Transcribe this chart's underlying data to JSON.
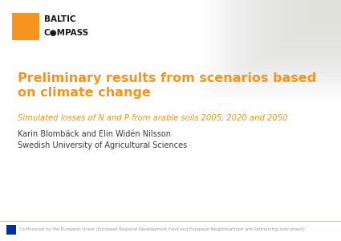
{
  "bg_color": "#ffffff",
  "orange_color": "#f7941d",
  "dark_text": "#3a3a3a",
  "logo_text_color": "#1a1a1a",
  "title_line1": "Preliminary results from scenarios based",
  "title_line2": "on climate change",
  "subtitle": "Simulated losses of N and P from arable soils 2005, 2020 and 2050",
  "author_line1": "Karin Blombäck and Elin Widén Nilsson",
  "author_line2": "Swedish University of Agricultural Sciences",
  "logo_text1": "BALTIC",
  "logo_text2": "C●MPASS",
  "footer_text": "Co-financed by the European Union (European Regional Development Fund and European Neighbourhood and Partnership Instrument)",
  "footer_line_color": "#dcc87a",
  "title_fontsize": 11.5,
  "subtitle_fontsize": 7.2,
  "author_fontsize": 7.0,
  "logo_fontsize": 7.5,
  "footer_fontsize": 3.8
}
